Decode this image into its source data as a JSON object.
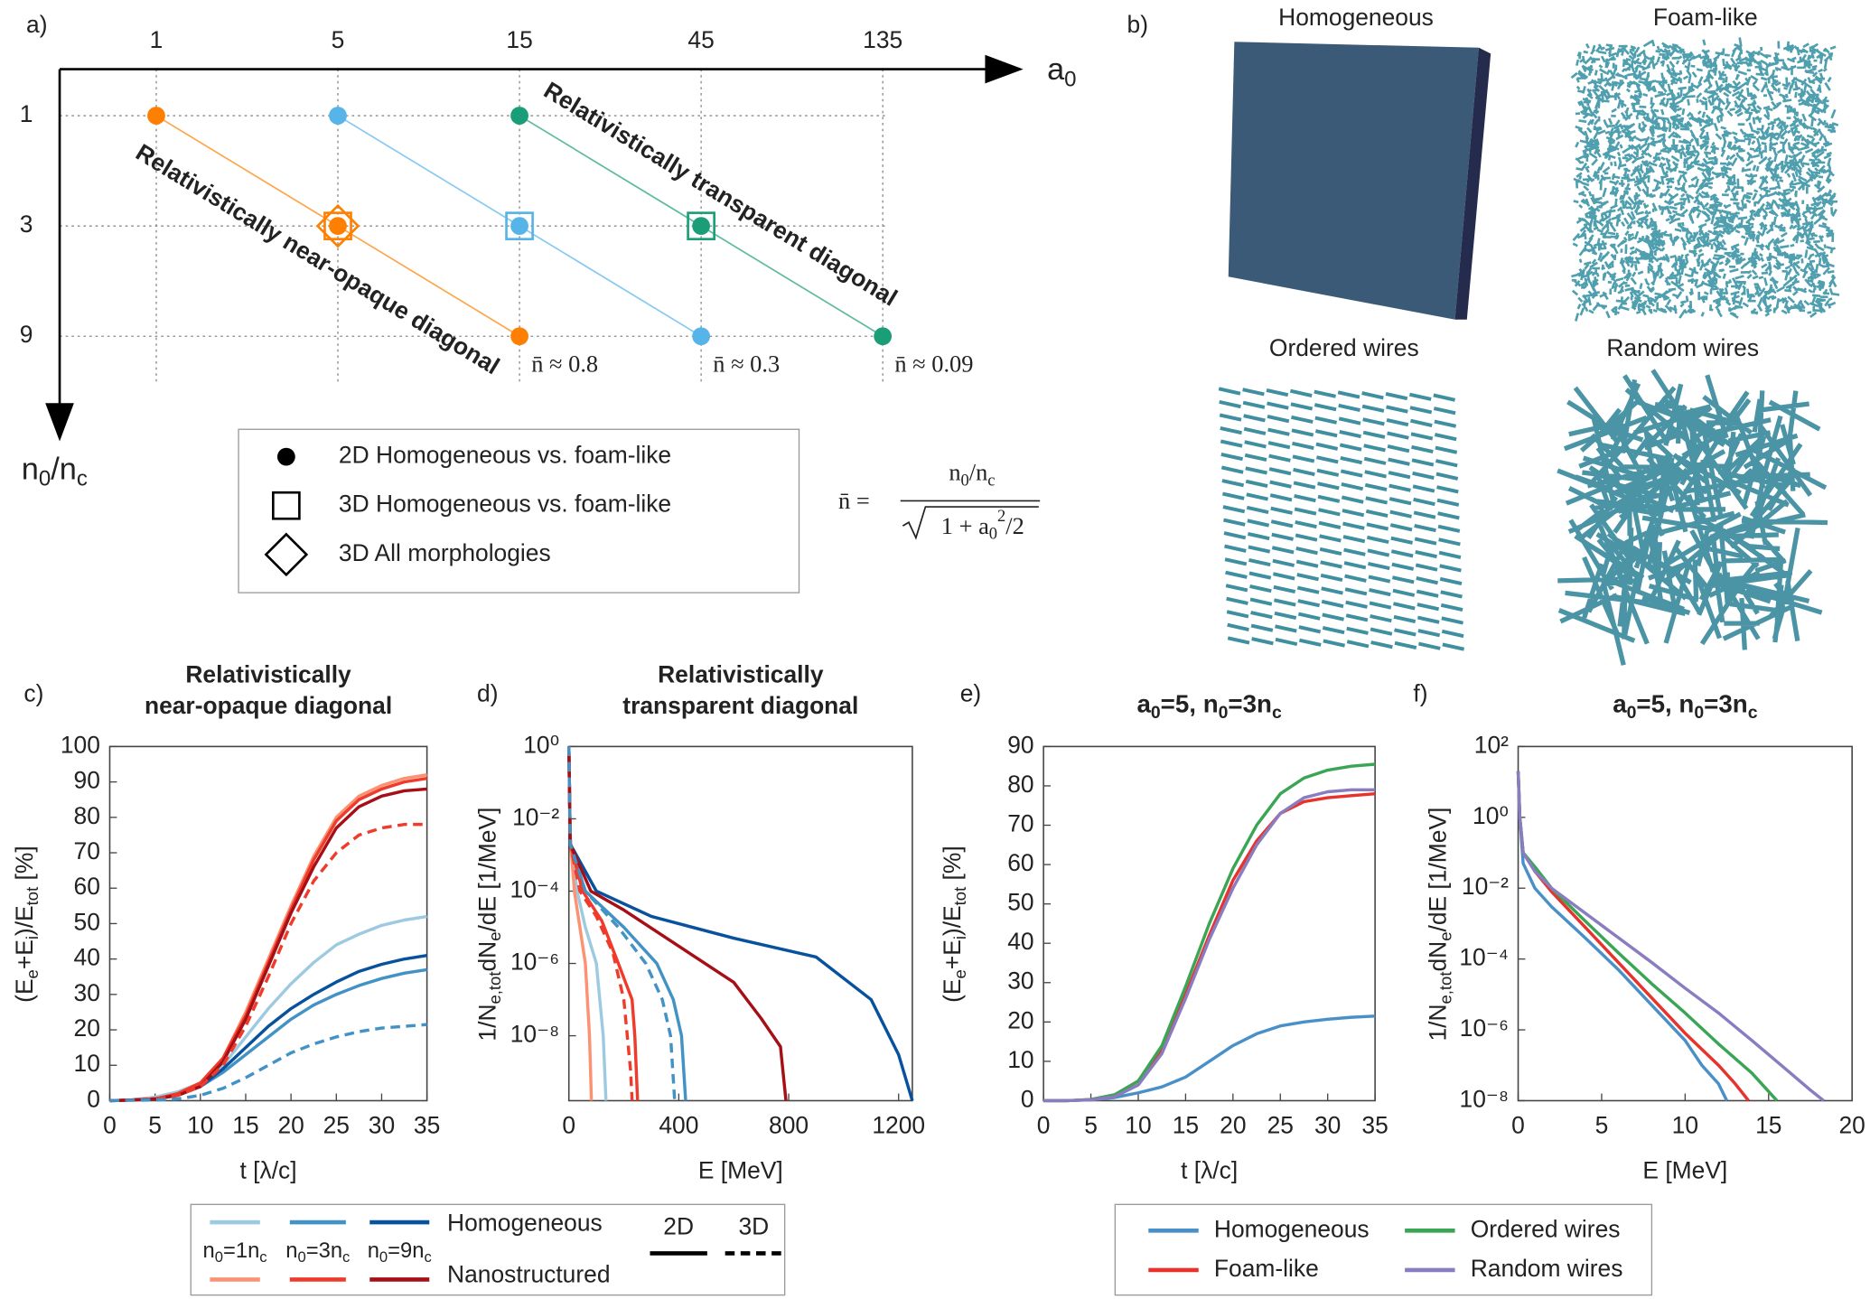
{
  "panel_labels": [
    "a)",
    "b)",
    "c)",
    "d)",
    "e)",
    "f)"
  ],
  "diagram": {
    "x_label": [
      {
        "text": "a"
      },
      {
        "sub": "0"
      }
    ],
    "x_ticks": [
      1,
      5,
      15,
      45,
      135
    ],
    "y_label": [
      {
        "text": "n"
      },
      {
        "sub": "0"
      },
      {
        "text": "/n"
      },
      {
        "sub": "c"
      }
    ],
    "y_ticks": [
      1,
      3,
      9
    ],
    "diagonals": [
      {
        "name": "Relativistically near-opaque diagonal",
        "color": "#ff8000",
        "n_bar": "n̄ ≈ 0.8",
        "points": [
          {
            "a0": 1,
            "n0": 1,
            "markers": [
              "dot"
            ]
          },
          {
            "a0": 5,
            "n0": 3,
            "markers": [
              "dot",
              "square",
              "diamond"
            ]
          },
          {
            "a0": 15,
            "n0": 9,
            "markers": [
              "dot"
            ]
          }
        ]
      },
      {
        "color": "#56b4e9",
        "n_bar": "n̄ ≈ 0.3",
        "points": [
          {
            "a0": 5,
            "n0": 1,
            "markers": [
              "dot"
            ]
          },
          {
            "a0": 15,
            "n0": 3,
            "markers": [
              "dot",
              "square"
            ]
          },
          {
            "a0": 45,
            "n0": 9,
            "markers": [
              "dot"
            ]
          }
        ]
      },
      {
        "name": "Relativistically transparent diagonal",
        "color": "#1b9e77",
        "n_bar": "n̄ ≈ 0.09",
        "points": [
          {
            "a0": 15,
            "n0": 1,
            "markers": [
              "dot"
            ]
          },
          {
            "a0": 45,
            "n0": 3,
            "markers": [
              "dot",
              "square"
            ]
          },
          {
            "a0": 135,
            "n0": 9,
            "markers": [
              "dot"
            ]
          }
        ]
      }
    ],
    "legend": [
      {
        "marker": "dot",
        "label": "2D Homogeneous vs. foam-like"
      },
      {
        "marker": "square",
        "label": "3D Homogeneous vs. foam-like"
      },
      {
        "marker": "diamond",
        "label": "3D All morphologies"
      }
    ],
    "formula": {
      "lhs": "n̄ =",
      "numerator": [
        {
          "text": "n"
        },
        {
          "sub": "0"
        },
        {
          "text": "/n"
        },
        {
          "sub": "c"
        }
      ],
      "denominator": [
        {
          "text": "1 + a"
        },
        {
          "sub": "0"
        },
        {
          "sup": "2"
        },
        {
          "text": "/2"
        }
      ]
    }
  },
  "images": {
    "titles": [
      "Homogeneous",
      "Foam-like",
      "Ordered wires",
      "Random wires"
    ]
  },
  "chart_data": [
    {
      "type": "line",
      "title": [
        "Relativistically",
        "near-opaque diagonal"
      ],
      "title_color": "#ff8c1a",
      "x_label": "t [λ/c]",
      "y_label": [
        {
          "text": "(E"
        },
        {
          "sub": "e"
        },
        {
          "text": "+E"
        },
        {
          "sub": "i"
        },
        {
          "text": ")/E"
        },
        {
          "sub": "tot"
        },
        {
          "text": " [%]"
        }
      ],
      "xlim": [
        0,
        35
      ],
      "xticks": [
        0,
        5,
        10,
        15,
        20,
        25,
        30,
        35
      ],
      "ylim": [
        0,
        100
      ],
      "yticks": [
        0,
        10,
        20,
        30,
        40,
        50,
        60,
        70,
        80,
        90,
        100
      ],
      "x": [
        0,
        2.5,
        5,
        7.5,
        10,
        12.5,
        15,
        17.5,
        20,
        22.5,
        25,
        27.5,
        30,
        32.5,
        35
      ],
      "series": [
        {
          "color": "#9ecae1",
          "dash": false,
          "values": [
            0,
            0.3,
            1,
            2.5,
            5,
            10,
            18,
            26,
            33,
            39,
            44,
            47,
            49.5,
            51,
            52
          ]
        },
        {
          "color": "#4292c6",
          "dash": false,
          "values": [
            0,
            0.2,
            0.5,
            1.5,
            4,
            8,
            13,
            18,
            23,
            27,
            30,
            32.5,
            34.5,
            36,
            37
          ]
        },
        {
          "color": "#08519c",
          "dash": false,
          "values": [
            0,
            0.2,
            0.5,
            1.5,
            4,
            9,
            15,
            21,
            26,
            30,
            33.5,
            36.5,
            38.5,
            40,
            41
          ]
        },
        {
          "color": "#fc9272",
          "dash": false,
          "values": [
            0,
            0.2,
            0.5,
            2,
            5,
            12,
            25,
            40,
            55,
            69,
            80,
            86,
            89,
            91,
            92
          ]
        },
        {
          "color": "#ef3b2c",
          "dash": false,
          "values": [
            0,
            0.2,
            0.5,
            2,
            5,
            12,
            24,
            39,
            54,
            68,
            79,
            85,
            88,
            90,
            91
          ]
        },
        {
          "color": "#a50f15",
          "dash": false,
          "values": [
            0,
            0.2,
            0.5,
            1.5,
            4,
            11,
            23,
            38,
            53,
            66,
            77,
            83,
            86,
            87.5,
            88
          ]
        },
        {
          "color": "#ef3b2c",
          "dash": true,
          "values": [
            0,
            0.2,
            0.5,
            1.5,
            4,
            10,
            21,
            35,
            50,
            62,
            70,
            75,
            77,
            78,
            78
          ]
        },
        {
          "color": "#4292c6",
          "dash": true,
          "values": [
            0,
            0.1,
            0.2,
            0.5,
            1.5,
            3.5,
            6.5,
            10,
            13.5,
            16,
            18,
            19.5,
            20.5,
            21,
            21.5
          ]
        }
      ],
      "legend": {
        "rows": [
          {
            "label": "Homogeneous",
            "colors": [
              "#9ecae1",
              "#4292c6",
              "#08519c"
            ]
          },
          {
            "label": "Nanostructured",
            "colors": [
              "#fc9272",
              "#ef3b2c",
              "#a50f15"
            ]
          }
        ],
        "columns": [
          [
            {
              "text": "n"
            },
            {
              "sub": "0"
            },
            {
              "text": "=1n"
            },
            {
              "sub": "c"
            }
          ],
          [
            {
              "text": "n"
            },
            {
              "sub": "0"
            },
            {
              "text": "=3n"
            },
            {
              "sub": "c"
            }
          ],
          [
            {
              "text": "n"
            },
            {
              "sub": "0"
            },
            {
              "text": "=9n"
            },
            {
              "sub": "c"
            }
          ]
        ],
        "styles": [
          {
            "label": "2D",
            "dash": false
          },
          {
            "label": "3D",
            "dash": true
          }
        ]
      }
    },
    {
      "type": "line",
      "title": [
        "Relativistically",
        "transparent diagonal"
      ],
      "title_color": "#1f9e74",
      "x_label": "E [MeV]",
      "y_label": [
        {
          "text": "1/N"
        },
        {
          "sub": "e,tot"
        },
        {
          "text": "dN"
        },
        {
          "sub": "e"
        },
        {
          "text": "/dE [1/MeV]"
        }
      ],
      "log_y": true,
      "xlim": [
        0,
        1250
      ],
      "xticks": [
        0,
        400,
        800,
        1200
      ],
      "ylim": [
        1.6e-10,
        1
      ],
      "yticks": [
        {
          "value": 1,
          "label": "10⁰"
        },
        {
          "value": 0.01,
          "label": "10⁻²"
        },
        {
          "value": 0.0001,
          "label": "10⁻⁴"
        },
        {
          "value": 1e-06,
          "label": "10⁻⁶"
        },
        {
          "value": 1e-08,
          "label": "10⁻⁸"
        }
      ],
      "series": [
        {
          "color": "#9ecae1",
          "dash": false,
          "x": [
            0,
            5,
            30,
            60,
            100,
            125,
            135
          ],
          "values": [
            1,
            0.003,
            0.0001,
            1e-05,
            1e-06,
            1e-08,
            1.6e-10
          ]
        },
        {
          "color": "#4292c6",
          "dash": false,
          "x": [
            0,
            5,
            60,
            200,
            320,
            380,
            410,
            425
          ],
          "values": [
            1,
            0.002,
            0.0001,
            1e-05,
            1e-06,
            1e-07,
            1e-08,
            1.6e-10
          ]
        },
        {
          "color": "#08519c",
          "dash": false,
          "x": [
            0,
            5,
            100,
            300,
            600,
            900,
            1100,
            1200,
            1250
          ],
          "values": [
            1,
            0.002,
            0.0001,
            2e-05,
            5e-06,
            1.5e-06,
            1e-07,
            3e-09,
            1.6e-10
          ]
        },
        {
          "color": "#fc9272",
          "dash": false,
          "x": [
            0,
            5,
            20,
            40,
            60,
            75,
            82
          ],
          "values": [
            1,
            0.003,
            0.0001,
            1e-05,
            1e-06,
            1e-08,
            1.6e-10
          ]
        },
        {
          "color": "#ef3b2c",
          "dash": false,
          "x": [
            0,
            5,
            50,
            120,
            180,
            230,
            240,
            250
          ],
          "values": [
            1,
            0.002,
            0.0001,
            1.5e-05,
            1e-06,
            1e-07,
            1e-08,
            1.6e-10
          ]
        },
        {
          "color": "#a50f15",
          "dash": false,
          "x": [
            0,
            5,
            80,
            200,
            400,
            600,
            700,
            770,
            790
          ],
          "values": [
            1,
            0.002,
            0.0001,
            3e-05,
            3e-06,
            3e-07,
            3e-08,
            5e-09,
            1.6e-10
          ]
        },
        {
          "color": "#ef3b2c",
          "dash": true,
          "x": [
            0,
            5,
            40,
            100,
            160,
            200,
            225,
            230
          ],
          "values": [
            1,
            0.002,
            0.0001,
            2e-05,
            2e-06,
            1e-07,
            1e-09,
            1.6e-10
          ]
        },
        {
          "color": "#4292c6",
          "dash": true,
          "x": [
            0,
            5,
            60,
            180,
            280,
            340,
            370,
            385
          ],
          "values": [
            1,
            0.002,
            0.0001,
            1e-05,
            1e-06,
            1e-07,
            1e-08,
            1.6e-10
          ]
        }
      ]
    },
    {
      "type": "line",
      "title": [
        {
          "text": "a"
        },
        {
          "sub": "0"
        },
        {
          "text": "=5, n"
        },
        {
          "sub": "0"
        },
        {
          "text": "=3n"
        },
        {
          "sub": "c"
        }
      ],
      "title_color": "#ff8c1a",
      "x_label": "t [λ/c]",
      "y_label": [
        {
          "text": "(E"
        },
        {
          "sub": "e"
        },
        {
          "text": "+E"
        },
        {
          "sub": "i"
        },
        {
          "text": ")/E"
        },
        {
          "sub": "tot"
        },
        {
          "text": " [%]"
        }
      ],
      "xlim": [
        0,
        35
      ],
      "xticks": [
        0,
        5,
        10,
        15,
        20,
        25,
        30,
        35
      ],
      "ylim": [
        0,
        90
      ],
      "yticks": [
        0,
        10,
        20,
        30,
        40,
        50,
        60,
        70,
        80,
        90
      ],
      "x": [
        0,
        2.5,
        5,
        7.5,
        10,
        12.5,
        15,
        17.5,
        20,
        22.5,
        25,
        27.5,
        30,
        32.5,
        35
      ],
      "legend": "bottom",
      "series": [
        {
          "name": "Homogeneous",
          "color": "#4a90c8",
          "values": [
            0,
            0,
            0.2,
            0.8,
            2,
            3.5,
            6,
            10,
            14,
            17,
            19,
            20,
            20.7,
            21.2,
            21.5
          ]
        },
        {
          "name": "Foam-like",
          "color": "#e8322c",
          "values": [
            0,
            0,
            0.3,
            1.5,
            5,
            13,
            27,
            42,
            56,
            66,
            73,
            76,
            77,
            77.5,
            78
          ]
        },
        {
          "name": "Ordered wires",
          "color": "#3aa655",
          "values": [
            0,
            0,
            0.3,
            1.5,
            5,
            14,
            29,
            45,
            59,
            70,
            78,
            82,
            84,
            85,
            85.5
          ]
        },
        {
          "name": "Random wires",
          "color": "#8a7cc0",
          "values": [
            0,
            0,
            0.2,
            1,
            4,
            12,
            26,
            41,
            54,
            65,
            73,
            77,
            78.5,
            79,
            79
          ]
        }
      ]
    },
    {
      "type": "line",
      "title": [
        {
          "text": "a"
        },
        {
          "sub": "0"
        },
        {
          "text": "=5, n"
        },
        {
          "sub": "0"
        },
        {
          "text": "=3n"
        },
        {
          "sub": "c"
        }
      ],
      "title_color": "#ff8c1a",
      "x_label": "E [MeV]",
      "y_label": [
        {
          "text": "1/N"
        },
        {
          "sub": "e,tot"
        },
        {
          "text": "dN"
        },
        {
          "sub": "e"
        },
        {
          "text": "/dE [1/MeV]"
        }
      ],
      "log_y": true,
      "xlim": [
        0,
        20
      ],
      "xticks": [
        0,
        5,
        10,
        15,
        20
      ],
      "ylim": [
        1e-08,
        100
      ],
      "yticks": [
        {
          "value": 100,
          "label": "10²"
        },
        {
          "value": 1,
          "label": "10⁰"
        },
        {
          "value": 0.01,
          "label": "10⁻²"
        },
        {
          "value": 0.0001,
          "label": "10⁻⁴"
        },
        {
          "value": 1e-06,
          "label": "10⁻⁶"
        },
        {
          "value": 1e-08,
          "label": "10⁻⁸"
        }
      ],
      "series": [
        {
          "color": "#4a90c8",
          "x": [
            0,
            0.1,
            0.3,
            1,
            2,
            4,
            6,
            8,
            10,
            11,
            12,
            12.5
          ],
          "values": [
            20,
            1,
            0.05,
            0.01,
            0.003,
            0.0004,
            5e-05,
            5e-06,
            5e-07,
            1e-07,
            3e-08,
            1e-08
          ]
        },
        {
          "color": "#e8322c",
          "x": [
            0,
            0.1,
            0.3,
            1,
            2,
            4,
            6,
            8,
            10,
            12,
            13,
            13.8
          ],
          "values": [
            20,
            1,
            0.1,
            0.03,
            0.008,
            0.0008,
            8e-05,
            8e-06,
            8e-07,
            1e-07,
            3e-08,
            1e-08
          ]
        },
        {
          "color": "#3aa655",
          "x": [
            0,
            0.1,
            0.3,
            1,
            2,
            4,
            6,
            8,
            10,
            12,
            14,
            15.5
          ],
          "values": [
            20,
            1,
            0.1,
            0.04,
            0.01,
            0.0012,
            0.00015,
            2e-05,
            3e-06,
            4e-07,
            6e-08,
            1e-08
          ]
        },
        {
          "color": "#8a7cc0",
          "x": [
            0,
            0.1,
            0.3,
            1,
            2,
            4,
            6,
            8,
            10,
            12,
            14,
            16,
            17.5,
            18.3
          ],
          "values": [
            20,
            1,
            0.1,
            0.03,
            0.01,
            0.002,
            0.0004,
            8e-05,
            1.5e-05,
            3e-06,
            5e-07,
            8e-08,
            2e-08,
            1e-08
          ]
        }
      ]
    }
  ]
}
